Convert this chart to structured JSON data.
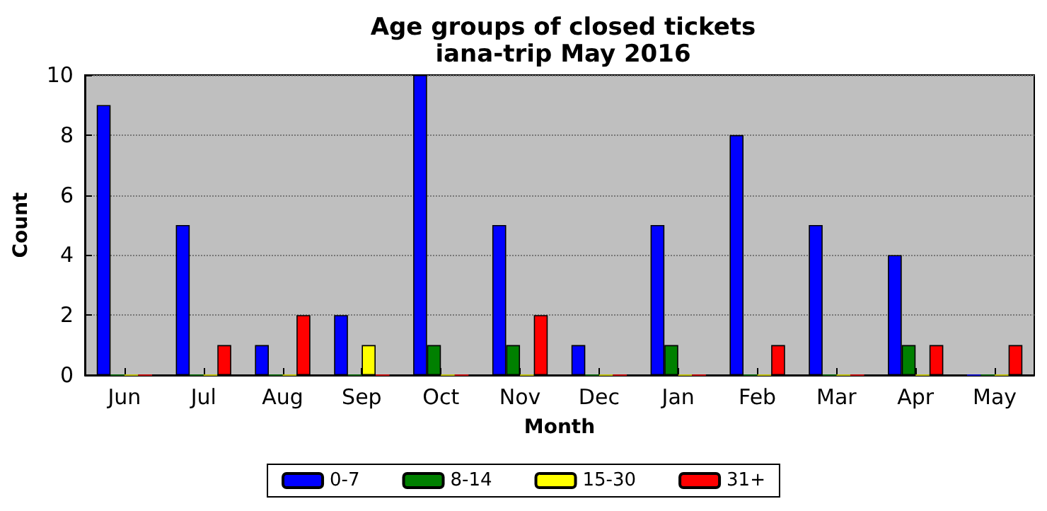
{
  "chart_data": {
    "type": "bar",
    "title": "Age groups of closed tickets",
    "subtitle": "iana-trip May 2016",
    "xlabel": "Month",
    "ylabel": "Count",
    "categories": [
      "Jun",
      "Jul",
      "Aug",
      "Sep",
      "Oct",
      "Nov",
      "Dec",
      "Jan",
      "Feb",
      "Mar",
      "Apr",
      "May"
    ],
    "series": [
      {
        "name": "0-7",
        "color": "#0000ff",
        "values": [
          9,
          5,
          1,
          2,
          10,
          5,
          1,
          5,
          8,
          5,
          4,
          0
        ]
      },
      {
        "name": "8-14",
        "color": "#008000",
        "values": [
          0,
          0,
          0,
          0,
          1,
          1,
          0,
          1,
          0,
          0,
          1,
          0
        ]
      },
      {
        "name": "15-30",
        "color": "#ffff00",
        "values": [
          0,
          0,
          0,
          1,
          0,
          0,
          0,
          0,
          0,
          0,
          0,
          0
        ]
      },
      {
        "name": "31+",
        "color": "#ff0000",
        "values": [
          0,
          1,
          2,
          0,
          0,
          2,
          0,
          0,
          1,
          0,
          1,
          1
        ]
      }
    ],
    "ylim": [
      0,
      10
    ],
    "yticks": [
      0,
      2,
      4,
      6,
      8,
      10
    ],
    "grid": "y",
    "legend": "bottom"
  }
}
